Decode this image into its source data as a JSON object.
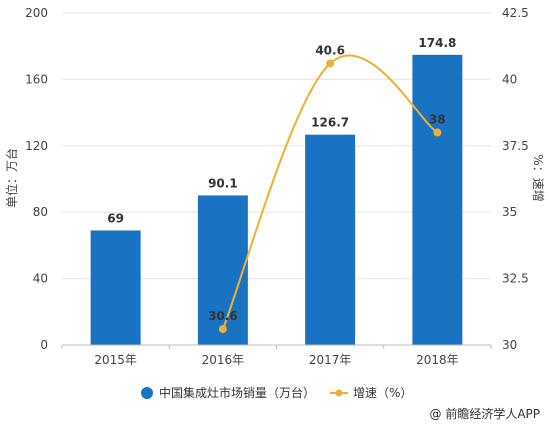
{
  "chart_data": {
    "type": "bar",
    "categories": [
      "2015年",
      "2016年",
      "2017年",
      "2018年"
    ],
    "series": [
      {
        "name": "中国集成灶市场销量（万台）",
        "type": "bar",
        "axis": "left",
        "values": [
          69,
          90.1,
          126.7,
          174.8
        ],
        "labels": [
          "69",
          "90.1",
          "126.7",
          "174.8"
        ],
        "color": "#1a73c2"
      },
      {
        "name": "增速（%）",
        "type": "line",
        "axis": "right",
        "values": [
          null,
          30.6,
          40.6,
          38
        ],
        "labels": [
          "",
          "30.6",
          "40.6",
          "38"
        ],
        "color": "#f0b030"
      }
    ],
    "ylabel_left": "单位：万台",
    "ylabel_right": "%：速增",
    "ylim_left": [
      0,
      200
    ],
    "yticks_left": [
      "0",
      "40",
      "80",
      "120",
      "160",
      "200"
    ],
    "ylim_right": [
      30,
      42.5
    ],
    "yticks_right": [
      "30",
      "32.5",
      "35",
      "37.5",
      "40",
      "42.5"
    ],
    "grid": true,
    "legend_position": "bottom"
  },
  "credit": "@ 前瞻经济学人APP"
}
